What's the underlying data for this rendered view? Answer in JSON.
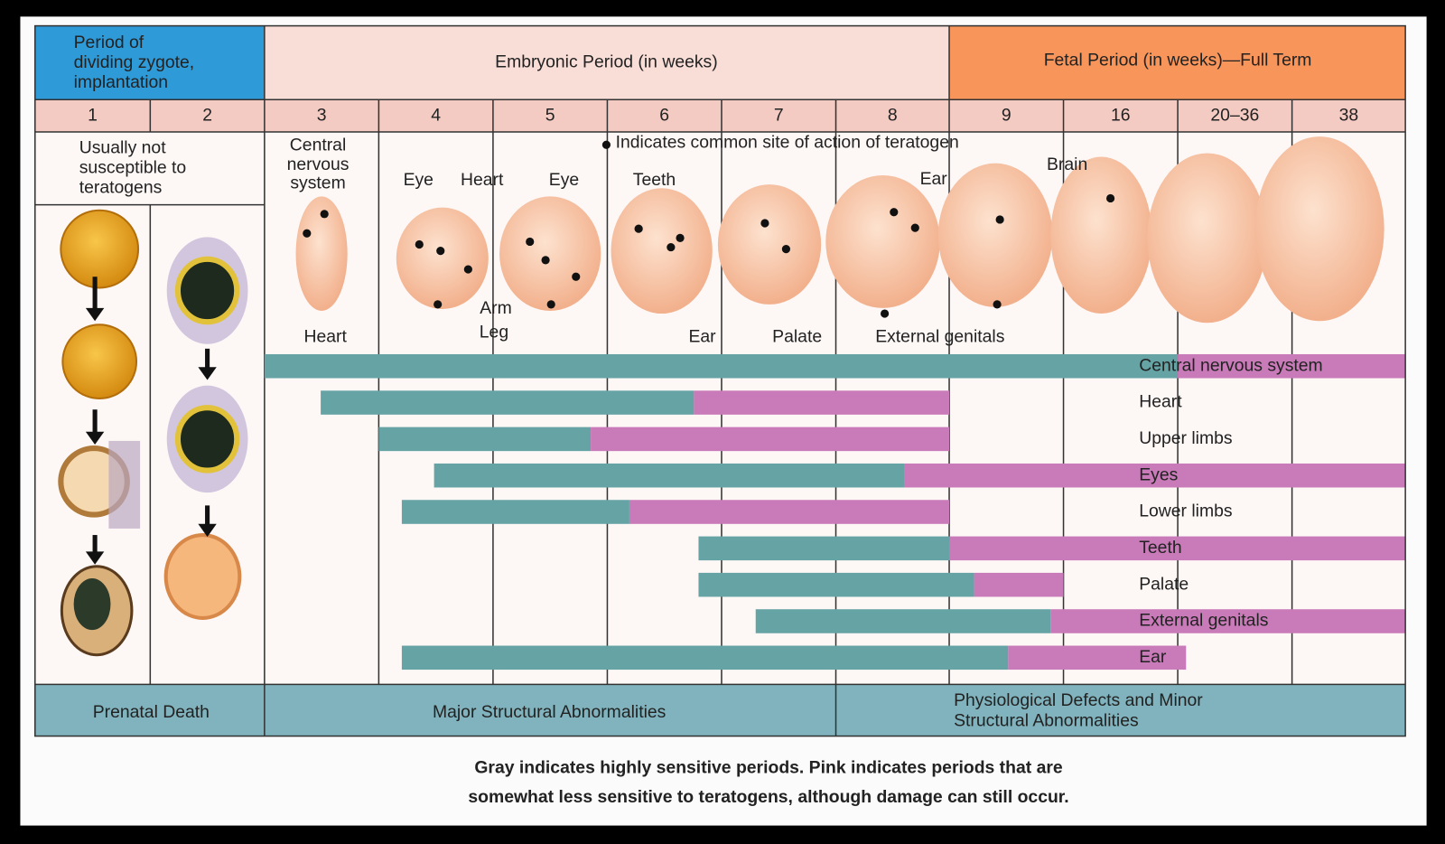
{
  "header": {
    "zygote_period": [
      "Period of",
      "dividing zygote,",
      "implantation"
    ],
    "embryonic_period": "Embryonic Period (in weeks)",
    "fetal_period": "Fetal Period (in weeks)—Full Term"
  },
  "weeks": [
    "1",
    "2",
    "3",
    "4",
    "5",
    "6",
    "7",
    "8",
    "9",
    "16",
    "20–36",
    "38"
  ],
  "not_susceptible": [
    "Usually not",
    "susceptible to",
    "teratogens"
  ],
  "dot_note": "Indicates common site of action of teratogen",
  "site_labels": [
    "Central",
    "nervous",
    "system",
    "Heart",
    "Eye",
    "Heart",
    "Eye",
    "Arm",
    "Leg",
    "Teeth",
    "Ear",
    "Palate",
    "External genitals",
    "Ear",
    "Brain"
  ],
  "organs": [
    "Central nervous system",
    "Heart",
    "Upper limbs",
    "Eyes",
    "Lower limbs",
    "Teeth",
    "Palate",
    "External genitals",
    "Ear"
  ],
  "outcomes": {
    "prenatal": "Prenatal Death",
    "major": "Major Structural Abnormalities",
    "minor": [
      "Physiological Defects and Minor",
      "Structural Abnormalities"
    ]
  },
  "caption": [
    "Gray indicates highly sensitive periods. Pink indicates periods that are",
    "somewhat less sensitive to teratogens, although damage can still occur."
  ]
}
